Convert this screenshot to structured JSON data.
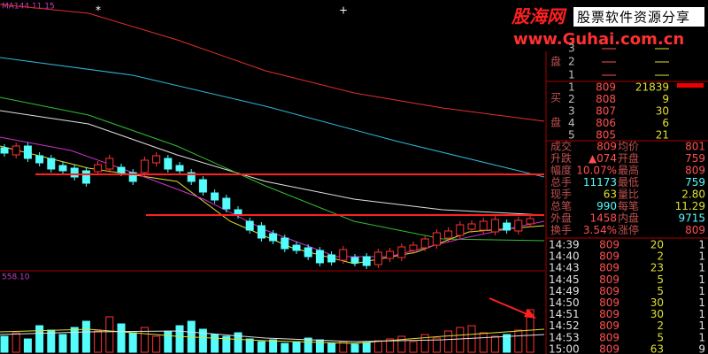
{
  "header": {
    "brand": "股海网",
    "slogan": "股票软件资源分享",
    "url": "www.Guhai.com.cn"
  },
  "chart": {
    "ma_label": "MA144 11.15",
    "volume_label": "558.10"
  },
  "sell_book": {
    "label": "盘",
    "levels": [
      "3",
      "2",
      "1"
    ]
  },
  "buy_book": {
    "labels": [
      "买",
      "盘"
    ],
    "rows": [
      [
        "1",
        "809",
        "21839"
      ],
      [
        "2",
        "808",
        "9"
      ],
      [
        "3",
        "807",
        "30"
      ],
      [
        "4",
        "806",
        "6"
      ],
      [
        "5",
        "805",
        "21"
      ]
    ]
  },
  "stats": [
    [
      "成交",
      "809",
      "均价",
      "801"
    ],
    [
      "升跌",
      "▲074",
      "开盘",
      "759"
    ],
    [
      "幅度",
      "10.07%",
      "最高",
      "809"
    ],
    [
      "总手",
      "11173",
      "最低",
      "759"
    ],
    [
      "现手",
      "63",
      "量比",
      "2.80"
    ],
    [
      "总笔",
      "990",
      "每笔",
      "11.29"
    ],
    [
      "外盘",
      "1458",
      "内盘",
      "9715"
    ],
    [
      "换手",
      "3.54%",
      "涨停",
      "809"
    ]
  ],
  "ticks": [
    [
      "14:39",
      "809",
      "20",
      "1"
    ],
    [
      "14:40",
      "809",
      "2",
      "1"
    ],
    [
      "14:43",
      "809",
      "23",
      "1"
    ],
    [
      "14:45",
      "809",
      "5",
      "1"
    ],
    [
      "14:49",
      "809",
      "5",
      "1"
    ],
    [
      "14:50",
      "809",
      "30",
      "1"
    ],
    [
      "14:51",
      "809",
      "30",
      "1"
    ],
    [
      "14:52",
      "809",
      "2",
      "1"
    ],
    [
      "14:53",
      "809",
      "5",
      "1"
    ],
    [
      "15:00",
      "809",
      "63",
      "9"
    ]
  ]
}
